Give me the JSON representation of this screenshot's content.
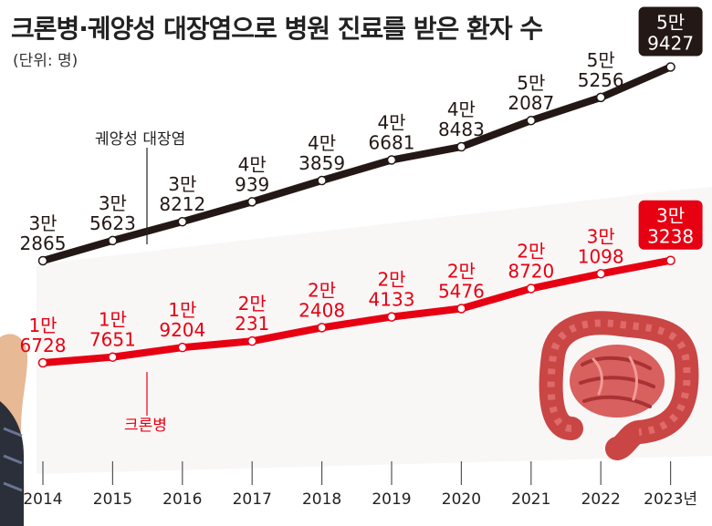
{
  "title": "크론병·궤양성 대장염으로 병원 진료를 받은 환자 수",
  "unit": "(단위: 명)",
  "chart_data": {
    "type": "line",
    "x": [
      "2014",
      "2015",
      "2016",
      "2017",
      "2018",
      "2019",
      "2020",
      "2021",
      "2022",
      "2023년"
    ],
    "series": [
      {
        "name": "궤양성 대장염",
        "color": "#231815",
        "values": [
          32865,
          35623,
          38212,
          40939,
          43859,
          46681,
          48483,
          52087,
          55256,
          59427
        ],
        "labels": [
          [
            "3만",
            "2865"
          ],
          [
            "3만",
            "5623"
          ],
          [
            "3만",
            "8212"
          ],
          [
            "4만",
            "939"
          ],
          [
            "4만",
            "3859"
          ],
          [
            "4만",
            "6681"
          ],
          [
            "4만",
            "8483"
          ],
          [
            "5만",
            "2087"
          ],
          [
            "5만",
            "5256"
          ],
          [
            "5만",
            "9427"
          ]
        ]
      },
      {
        "name": "크론병",
        "color": "#e60012",
        "values": [
          16728,
          17651,
          19204,
          20231,
          22408,
          24133,
          25476,
          28720,
          31098,
          33238
        ],
        "labels": [
          [
            "1만",
            "6728"
          ],
          [
            "1만",
            "7651"
          ],
          [
            "1만",
            "9204"
          ],
          [
            "2만",
            "231"
          ],
          [
            "2만",
            "2408"
          ],
          [
            "2만",
            "4133"
          ],
          [
            "2만",
            "5476"
          ],
          [
            "2만",
            "8720"
          ],
          [
            "3만",
            "1098"
          ],
          [
            "3만",
            "3238"
          ]
        ]
      }
    ],
    "ylim": [
      12000,
      62000
    ],
    "grid": false,
    "legend": "inline annotations"
  },
  "illustration": {
    "intestine-icon": "#d9534f"
  }
}
